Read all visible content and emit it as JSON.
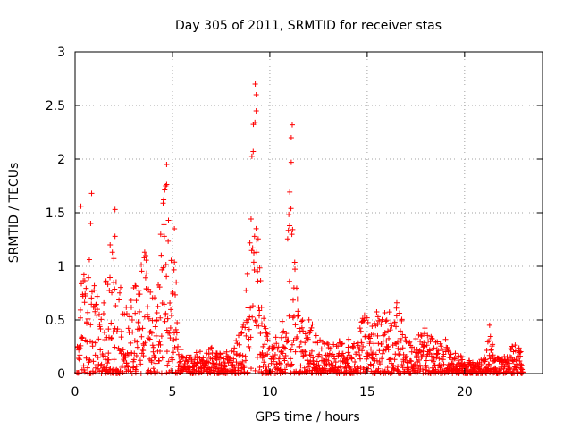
{
  "chart_data": {
    "type": "scatter",
    "title": "Day 305 of 2011, SRMTID for receiver stas",
    "xlabel": "GPS time / hours",
    "ylabel": "SRMTID / TECUs",
    "xlim": [
      0,
      24
    ],
    "ylim": [
      0,
      3
    ],
    "x_ticks": [
      0,
      5,
      10,
      15,
      20
    ],
    "x_tick_labels": [
      "0",
      "5",
      "10",
      "15",
      "20"
    ],
    "y_ticks": [
      0,
      0.5,
      1,
      1.5,
      2,
      2.5,
      3
    ],
    "y_tick_labels": [
      "0",
      "0.5",
      "1",
      "1.5",
      "2",
      "2.5",
      "3"
    ],
    "grid": true,
    "marker": "+",
    "color": "#ff0000",
    "series": [
      {
        "name": "stas",
        "envelope": [
          [
            0.1,
            0.25
          ],
          [
            0.4,
            1.35
          ],
          [
            0.6,
            0.9
          ],
          [
            0.9,
            1.35
          ],
          [
            1.0,
            0.95
          ],
          [
            1.3,
            0.45
          ],
          [
            1.6,
            0.9
          ],
          [
            1.9,
            1.2
          ],
          [
            2.2,
            0.85
          ],
          [
            2.5,
            0.75
          ],
          [
            2.8,
            0.65
          ],
          [
            3.0,
            0.9
          ],
          [
            3.3,
            0.95
          ],
          [
            3.6,
            1.15
          ],
          [
            3.9,
            0.85
          ],
          [
            4.2,
            0.75
          ],
          [
            4.5,
            1.6
          ],
          [
            4.7,
            1.9
          ],
          [
            4.9,
            1.2
          ],
          [
            5.1,
            1.4
          ],
          [
            5.3,
            0.5
          ],
          [
            5.6,
            0.22
          ],
          [
            6.0,
            0.18
          ],
          [
            6.5,
            0.22
          ],
          [
            7.0,
            0.25
          ],
          [
            7.5,
            0.22
          ],
          [
            8.0,
            0.2
          ],
          [
            8.5,
            0.45
          ],
          [
            8.8,
            0.9
          ],
          [
            9.0,
            1.9
          ],
          [
            9.2,
            2.6
          ],
          [
            9.4,
            1.6
          ],
          [
            9.6,
            0.6
          ],
          [
            10.0,
            0.45
          ],
          [
            10.4,
            0.35
          ],
          [
            10.8,
            0.6
          ],
          [
            11.0,
            2.2
          ],
          [
            11.2,
            1.3
          ],
          [
            11.5,
            0.65
          ],
          [
            12.0,
            0.55
          ],
          [
            12.5,
            0.35
          ],
          [
            13.0,
            0.3
          ],
          [
            13.5,
            0.3
          ],
          [
            14.0,
            0.35
          ],
          [
            14.5,
            0.45
          ],
          [
            14.9,
            0.6
          ],
          [
            15.2,
            0.45
          ],
          [
            15.6,
            0.7
          ],
          [
            16.0,
            0.6
          ],
          [
            16.5,
            0.7
          ],
          [
            17.0,
            0.4
          ],
          [
            17.5,
            0.35
          ],
          [
            18.0,
            0.45
          ],
          [
            18.5,
            0.3
          ],
          [
            19.0,
            0.35
          ],
          [
            19.5,
            0.2
          ],
          [
            20.0,
            0.15
          ],
          [
            20.5,
            0.1
          ],
          [
            21.0,
            0.15
          ],
          [
            21.3,
            0.5
          ],
          [
            21.6,
            0.2
          ],
          [
            22.0,
            0.15
          ],
          [
            22.5,
            0.3
          ],
          [
            23.0,
            0.3
          ]
        ],
        "outliers": [
          [
            0.85,
            1.68
          ],
          [
            0.8,
            1.4
          ],
          [
            0.3,
            1.56
          ],
          [
            2.05,
            1.53
          ],
          [
            2.05,
            1.28
          ],
          [
            9.25,
            2.7
          ],
          [
            9.3,
            2.6
          ],
          [
            9.3,
            2.45
          ],
          [
            11.15,
            2.32
          ],
          [
            11.1,
            2.2
          ],
          [
            11.1,
            1.97
          ],
          [
            4.7,
            1.95
          ],
          [
            4.65,
            1.75
          ],
          [
            1.8,
            1.2
          ],
          [
            5.1,
            1.35
          ]
        ]
      }
    ]
  }
}
